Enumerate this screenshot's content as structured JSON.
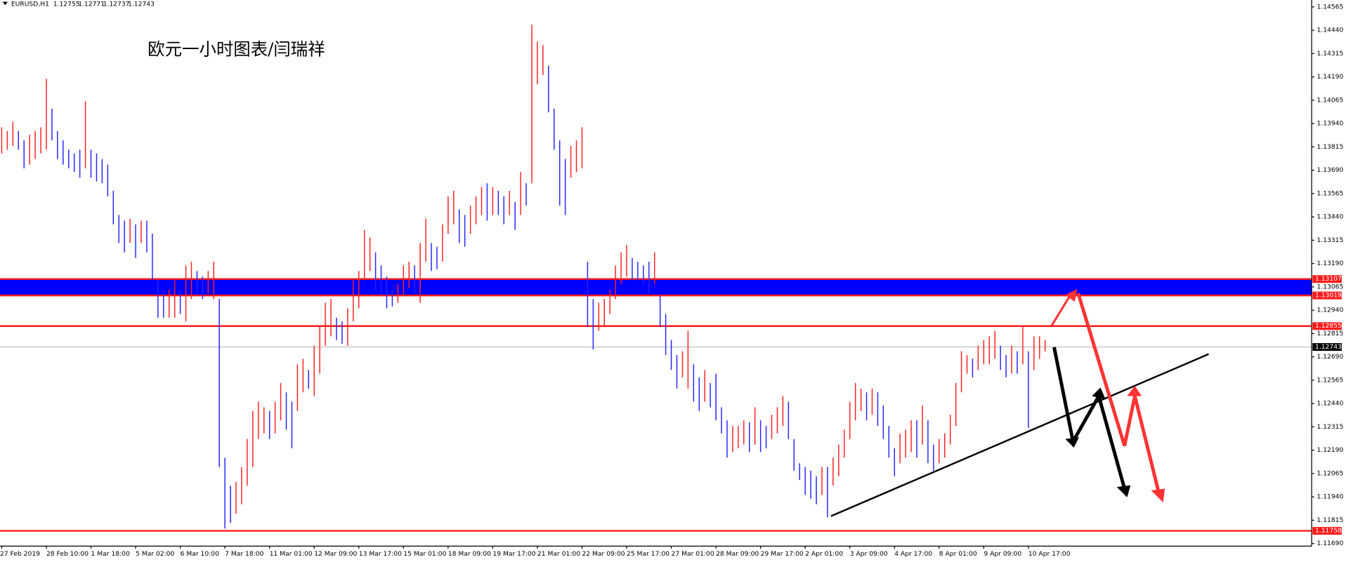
{
  "chart_data": {
    "type": "hilo",
    "symbol": "EURUSD,H1",
    "quote": [
      1.12755,
      1.12771,
      1.12737,
      1.12743
    ],
    "title": "欧元一小时图表/闫瑞祥",
    "ylim": [
      1.11676,
      1.14602
    ],
    "yticks": [
      1.14565,
      {
        "value": 1.1444,
        "label": "1.14440"
      },
      1.14315,
      {
        "value": 1.1419,
        "label": "1.14190"
      },
      1.14065,
      {
        "value": 1.1394,
        "label": "1.13940"
      },
      1.13815,
      {
        "value": 1.1369,
        "label": "1.13690"
      },
      1.13565,
      {
        "value": 1.1344,
        "label": "1.13440"
      },
      1.13315,
      {
        "value": 1.1319,
        "label": "1.13190"
      },
      1.13065,
      {
        "value": 1.1294,
        "label": "1.12940"
      },
      1.12815,
      {
        "value": 1.1269,
        "label": "1.12690"
      },
      1.12565,
      {
        "value": 1.1244,
        "label": "1.12440"
      },
      1.12315,
      {
        "value": 1.1219,
        "label": "1.12190"
      },
      1.12065,
      {
        "value": 1.1194,
        "label": "1.11940"
      },
      1.11815,
      {
        "value": 1.1169,
        "label": "1.11690"
      }
    ],
    "levels": [
      1.13107,
      1.13019,
      1.12855,
      1.11758
    ],
    "level_color": "#ff1a1a",
    "band_color": "#0000ff",
    "current_price": 1.12743,
    "up_color": "#ff2020",
    "down_color": "#2424ff",
    "categories": [
      "27 Feb 2019",
      null,
      null,
      null,
      null,
      null,
      null,
      null,
      "28 Feb 10:00",
      null,
      null,
      null,
      null,
      null,
      null,
      null,
      "1 Mar 18:00",
      null,
      null,
      null,
      null,
      null,
      null,
      null,
      "5 Mar 02:00",
      null,
      null,
      null,
      null,
      null,
      null,
      null,
      "6 Mar 10:00",
      null,
      null,
      null,
      null,
      null,
      null,
      null,
      "7 Mar 18:00",
      null,
      null,
      null,
      null,
      null,
      null,
      null,
      "11 Mar 01:00",
      null,
      null,
      null,
      null,
      null,
      null,
      null,
      "12 Mar 09:00",
      null,
      null,
      null,
      null,
      null,
      null,
      null,
      "13 Mar 17:00",
      null,
      null,
      null,
      null,
      null,
      null,
      null,
      "15 Mar 01:00",
      null,
      null,
      null,
      null,
      null,
      null,
      null,
      "18 Mar 09:00",
      null,
      null,
      null,
      null,
      null,
      null,
      null,
      "19 Mar 17:00",
      null,
      null,
      null,
      null,
      null,
      null,
      null,
      "21 Mar 01:00",
      null,
      null,
      null,
      null,
      null,
      null,
      null,
      "22 Mar 09:00",
      null,
      null,
      null,
      null,
      null,
      null,
      null,
      "25 Mar 17:00",
      null,
      null,
      null,
      null,
      null,
      null,
      null,
      "27 Mar 01:00",
      null,
      null,
      null,
      null,
      null,
      null,
      null,
      "28 Mar 09:00",
      null,
      null,
      null,
      null,
      null,
      null,
      null,
      "29 Mar 17:00",
      null,
      null,
      null,
      null,
      null,
      null,
      null,
      "2 Apr 01:00",
      null,
      null,
      null,
      null,
      null,
      null,
      null,
      "3 Apr 09:00",
      null,
      null,
      null,
      null,
      null,
      null,
      null,
      "4 Apr 17:00",
      null,
      null,
      null,
      null,
      null,
      null,
      null,
      "8 Apr 01:00",
      null,
      null,
      null,
      null,
      null,
      null,
      null,
      "9 Apr 09:00",
      null,
      null,
      null,
      null,
      null,
      null,
      null,
      "10 Apr 17:00",
      null,
      null,
      null
    ],
    "high": [
      1.1392,
      1.139,
      1.1395,
      1.139,
      1.1385,
      1.1388,
      1.139,
      1.1392,
      1.1418,
      1.1402,
      1.139,
      1.1385,
      1.138,
      1.1378,
      1.138,
      1.1406,
      1.138,
      1.1378,
      1.1375,
      1.1372,
      1.1358,
      1.1345,
      1.1342,
      1.1343,
      1.134,
      1.1342,
      1.1342,
      1.1335,
      1.131,
      1.1305,
      1.1305,
      1.131,
      1.1305,
      1.1318,
      1.132,
      1.1315,
      1.1312,
      1.1315,
      1.132,
      1.13,
      1.1215,
      1.12,
      1.1202,
      1.121,
      1.1225,
      1.124,
      1.1245,
      1.1242,
      1.124,
      1.1245,
      1.1255,
      1.125,
      1.1245,
      1.1265,
      1.1268,
      1.1262,
      1.1275,
      1.1285,
      1.1298,
      1.13,
      1.129,
      1.1288,
      1.1295,
      1.131,
      1.1315,
      1.1337,
      1.1333,
      1.1325,
      1.1318,
      1.1312,
      1.1305,
      1.1308,
      1.1318,
      1.132,
      1.1318,
      1.133,
      1.1343,
      1.133,
      1.1328,
      1.134,
      1.1355,
      1.1358,
      1.1348,
      1.1345,
      1.135,
      1.1355,
      1.136,
      1.1362,
      1.136,
      1.1358,
      1.1355,
      1.1358,
      1.1352,
      1.1368,
      1.1362,
      1.1447,
      1.1438,
      1.1436,
      1.1425,
      1.1402,
      1.1385,
      1.1375,
      1.1382,
      1.1385,
      1.1392,
      1.132,
      1.13,
      1.1298,
      1.13,
      1.1305,
      1.1318,
      1.1325,
      1.1329,
      1.1322,
      1.132,
      1.1318,
      1.132,
      1.1325,
      1.1302,
      1.1292,
      1.1278,
      1.127,
      1.1272,
      1.1283,
      1.1265,
      1.1258,
      1.1262,
      1.1255,
      1.126,
      1.1242,
      1.1235,
      1.1232,
      1.1232,
      1.1235,
      1.1234,
      1.1242,
      1.1235,
      1.1232,
      1.1238,
      1.1242,
      1.1248,
      1.1245,
      1.1225,
      1.1212,
      1.121,
      1.1208,
      1.1205,
      1.121,
      1.121,
      1.1215,
      1.1222,
      1.123,
      1.1245,
      1.1255,
      1.1252,
      1.125,
      1.1252,
      1.125,
      1.1243,
      1.1232,
      1.122,
      1.1228,
      1.123,
      1.1235,
      1.1235,
      1.1243,
      1.1235,
      1.1222,
      1.1225,
      1.1228,
      1.1238,
      1.1255,
      1.1272,
      1.127,
      1.1268,
      1.1275,
      1.1278,
      1.128,
      1.1283,
      1.1275,
      1.127,
      1.1275,
      1.1272,
      1.1285,
      1.1272,
      1.128,
      1.128,
      1.1278
    ],
    "low": [
      1.1378,
      1.138,
      1.1382,
      1.138,
      1.137,
      1.1372,
      1.1375,
      1.1378,
      1.138,
      1.1385,
      1.1375,
      1.1372,
      1.137,
      1.1368,
      1.1365,
      1.137,
      1.1365,
      1.1363,
      1.1362,
      1.1355,
      1.134,
      1.133,
      1.1325,
      1.133,
      1.1322,
      1.133,
      1.1325,
      1.131,
      1.129,
      1.129,
      1.129,
      1.129,
      1.1292,
      1.1288,
      1.13,
      1.1302,
      1.13,
      1.1303,
      1.13,
      1.121,
      1.1177,
      1.118,
      1.1185,
      1.119,
      1.12,
      1.121,
      1.1225,
      1.1228,
      1.1225,
      1.1228,
      1.1235,
      1.123,
      1.122,
      1.124,
      1.125,
      1.1252,
      1.1248,
      1.126,
      1.1275,
      1.128,
      1.1278,
      1.1276,
      1.1275,
      1.1288,
      1.1295,
      1.131,
      1.1315,
      1.1305,
      1.1302,
      1.1295,
      1.1296,
      1.1298,
      1.1302,
      1.1306,
      1.1303,
      1.1298,
      1.132,
      1.1315,
      1.1316,
      1.132,
      1.1335,
      1.134,
      1.133,
      1.1328,
      1.1335,
      1.134,
      1.1345,
      1.1342,
      1.1345,
      1.1345,
      1.134,
      1.1345,
      1.1337,
      1.1345,
      1.135,
      1.1362,
      1.1415,
      1.142,
      1.14,
      1.138,
      1.135,
      1.1345,
      1.1365,
      1.1368,
      1.137,
      1.1285,
      1.1273,
      1.1283,
      1.1285,
      1.1292,
      1.13,
      1.1308,
      1.1312,
      1.131,
      1.131,
      1.1308,
      1.1303,
      1.1308,
      1.1285,
      1.127,
      1.1262,
      1.1252,
      1.1258,
      1.1252,
      1.1245,
      1.124,
      1.1245,
      1.1242,
      1.1235,
      1.1228,
      1.1215,
      1.1218,
      1.122,
      1.1222,
      1.1218,
      1.1222,
      1.1218,
      1.122,
      1.1225,
      1.1228,
      1.1232,
      1.1225,
      1.1208,
      1.1203,
      1.1195,
      1.1193,
      1.119,
      1.1195,
      1.1183,
      1.12,
      1.1205,
      1.1215,
      1.1225,
      1.1235,
      1.124,
      1.1235,
      1.1238,
      1.1232,
      1.1225,
      1.1215,
      1.1205,
      1.1212,
      1.1215,
      1.1218,
      1.1215,
      1.1222,
      1.1212,
      1.1208,
      1.1212,
      1.1215,
      1.1222,
      1.1232,
      1.125,
      1.126,
      1.1258,
      1.1262,
      1.1265,
      1.1265,
      1.1268,
      1.1262,
      1.1258,
      1.126,
      1.126,
      1.1265,
      1.1231,
      1.1262,
      1.1268,
      1.1272
    ]
  }
}
